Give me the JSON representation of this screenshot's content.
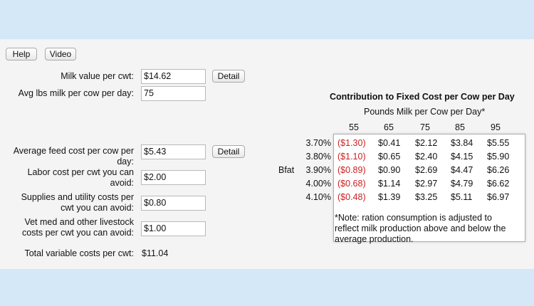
{
  "toolbar": {
    "help_label": "Help",
    "video_label": "Video"
  },
  "inputs": {
    "milk_value": {
      "label": "Milk value per cwt:",
      "value": "$14.62",
      "detail_label": "Detail"
    },
    "avg_lbs": {
      "label": "Avg lbs milk per cow per day:",
      "value": "75"
    },
    "feed_cost": {
      "label_line1": "Average feed cost per cow per",
      "label_line2": "day:",
      "value": "$5.43",
      "detail_label": "Detail"
    },
    "labor_cost": {
      "label_line1": "Labor cost per cwt you can",
      "label_line2": "avoid:",
      "value": "$2.00"
    },
    "supplies_cost": {
      "label_line1": "Supplies and utility costs per",
      "label_line2": "cwt you can avoid:",
      "value": "$0.80"
    },
    "vet_cost": {
      "label_line1": "Vet med and other livestock",
      "label_line2": "costs per cwt you can avoid:",
      "value": "$1.00"
    },
    "total": {
      "label": "Total variable costs per cwt:",
      "value": "$11.04"
    }
  },
  "table": {
    "title": "Contribution to Fixed Cost per Cow per Day",
    "subtitle": "Pounds Milk per Cow per Day*",
    "row_axis_label": "Bfat",
    "columns": [
      "55",
      "65",
      "75",
      "85",
      "95"
    ],
    "rows": [
      {
        "label": "3.70%",
        "values": [
          "($1.30)",
          "$0.41",
          "$2.12",
          "$3.84",
          "$5.55"
        ]
      },
      {
        "label": "3.80%",
        "values": [
          "($1.10)",
          "$0.65",
          "$2.40",
          "$4.15",
          "$5.90"
        ]
      },
      {
        "label": "3.90%",
        "values": [
          "($0.89)",
          "$0.90",
          "$2.69",
          "$4.47",
          "$6.26"
        ]
      },
      {
        "label": "4.00%",
        "values": [
          "($0.68)",
          "$1.14",
          "$2.97",
          "$4.79",
          "$6.62"
        ]
      },
      {
        "label": "4.10%",
        "values": [
          "($0.48)",
          "$1.39",
          "$3.25",
          "$5.11",
          "$6.97"
        ]
      }
    ],
    "negative_color": "#cc1f1f",
    "note_line1": "*Note: ration consumption is adjusted to",
    "note_line2": "reflect milk production above and below the",
    "note_line3": "average production."
  }
}
